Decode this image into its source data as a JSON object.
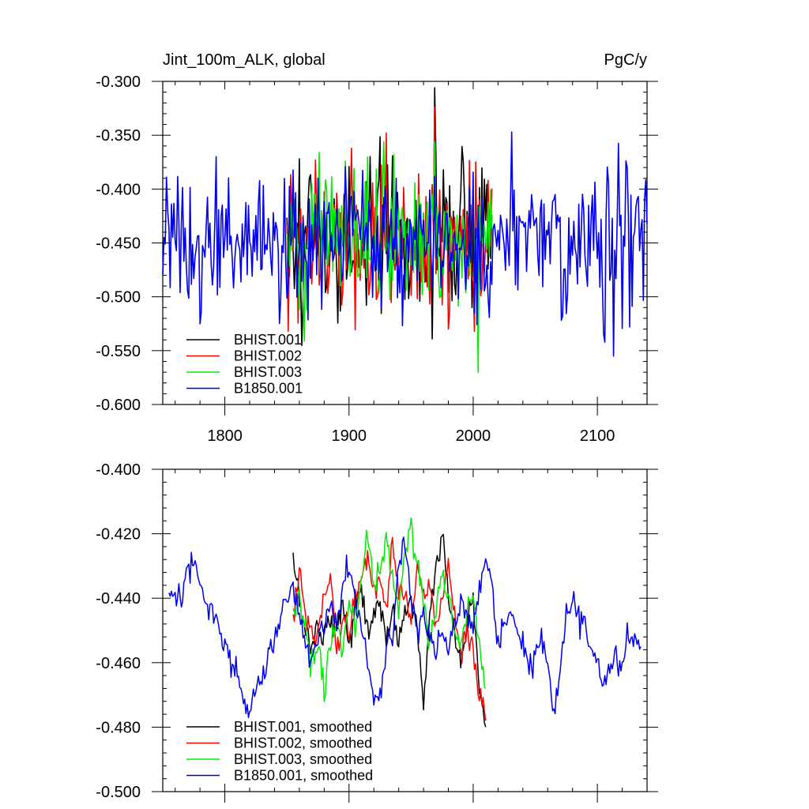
{
  "chart_data": [
    {
      "type": "line",
      "title_left": "Jint_100m_ALK, global",
      "title_right": "PgC/y",
      "xlim": [
        1750,
        2140
      ],
      "ylim": [
        -0.6,
        -0.3
      ],
      "x_ticks": [
        1800,
        1900,
        2000,
        2100
      ],
      "y_ticks": [
        -0.6,
        -0.55,
        -0.5,
        -0.45,
        -0.4,
        -0.35,
        -0.3
      ],
      "y_tick_labels": [
        "-0.600",
        "-0.550",
        "-0.500",
        "-0.450",
        "-0.400",
        "-0.350",
        "-0.300"
      ],
      "legend_position": "bottom-left",
      "series": [
        {
          "name": "BHIST.001",
          "color": "#000000",
          "x_start": 1850,
          "x_end": 2015,
          "mean": -0.445,
          "sd": 0.038,
          "min": -0.548,
          "max": -0.306
        },
        {
          "name": "BHIST.002",
          "color": "#ff0000",
          "x_start": 1850,
          "x_end": 2015,
          "mean": -0.446,
          "sd": 0.037,
          "min": -0.532,
          "max": -0.324
        },
        {
          "name": "BHIST.003",
          "color": "#00ee00",
          "x_start": 1850,
          "x_end": 2015,
          "mean": -0.444,
          "sd": 0.037,
          "min": -0.57,
          "max": -0.356
        },
        {
          "name": "B1850.001",
          "color": "#0000ee",
          "x_start": 1750,
          "x_end": 2140,
          "mean": -0.448,
          "sd": 0.033,
          "min": -0.555,
          "max": -0.347
        }
      ]
    },
    {
      "type": "line",
      "xlim": [
        1750,
        2140
      ],
      "ylim": [
        -0.5,
        -0.4
      ],
      "x_ticks": [
        1800,
        1900,
        2000,
        2100
      ],
      "y_ticks": [
        -0.5,
        -0.48,
        -0.46,
        -0.44,
        -0.42,
        -0.4
      ],
      "y_tick_labels": [
        "-0.500",
        "-0.480",
        "-0.460",
        "-0.440",
        "-0.420",
        "-0.400"
      ],
      "legend_position": "bottom-left",
      "series": [
        {
          "name": "BHIST.001, smoothed",
          "color": "#000000",
          "x": [
            1855,
            1860,
            1865,
            1870,
            1875,
            1880,
            1885,
            1890,
            1895,
            1900,
            1905,
            1910,
            1915,
            1920,
            1925,
            1930,
            1935,
            1940,
            1945,
            1950,
            1955,
            1960,
            1965,
            1970,
            1975,
            1980,
            1985,
            1990,
            1995,
            2000,
            2005,
            2010
          ],
          "y": [
            -0.428,
            -0.44,
            -0.45,
            -0.455,
            -0.448,
            -0.452,
            -0.445,
            -0.45,
            -0.44,
            -0.455,
            -0.442,
            -0.438,
            -0.45,
            -0.445,
            -0.44,
            -0.455,
            -0.445,
            -0.452,
            -0.445,
            -0.44,
            -0.45,
            -0.473,
            -0.445,
            -0.43,
            -0.422,
            -0.438,
            -0.45,
            -0.462,
            -0.448,
            -0.44,
            -0.47,
            -0.48
          ]
        },
        {
          "name": "BHIST.002, smoothed",
          "color": "#ff0000",
          "x": [
            1855,
            1860,
            1865,
            1870,
            1875,
            1880,
            1885,
            1890,
            1895,
            1900,
            1905,
            1910,
            1915,
            1920,
            1925,
            1930,
            1935,
            1940,
            1945,
            1950,
            1955,
            1960,
            1965,
            1970,
            1975,
            1980,
            1985,
            1990,
            1995,
            2000,
            2005,
            2010
          ],
          "y": [
            -0.447,
            -0.43,
            -0.445,
            -0.452,
            -0.45,
            -0.44,
            -0.432,
            -0.455,
            -0.445,
            -0.45,
            -0.44,
            -0.435,
            -0.425,
            -0.44,
            -0.432,
            -0.445,
            -0.422,
            -0.438,
            -0.44,
            -0.445,
            -0.43,
            -0.44,
            -0.435,
            -0.45,
            -0.44,
            -0.43,
            -0.445,
            -0.455,
            -0.45,
            -0.458,
            -0.47,
            -0.478
          ]
        },
        {
          "name": "BHIST.003, smoothed",
          "color": "#00ee00",
          "x": [
            1855,
            1860,
            1865,
            1870,
            1875,
            1880,
            1885,
            1890,
            1895,
            1900,
            1905,
            1910,
            1915,
            1920,
            1925,
            1930,
            1935,
            1940,
            1945,
            1950,
            1955,
            1960,
            1965,
            1970,
            1975,
            1980,
            1985,
            1990,
            1995,
            2000,
            2005,
            2010
          ],
          "y": [
            -0.445,
            -0.44,
            -0.452,
            -0.46,
            -0.455,
            -0.468,
            -0.455,
            -0.448,
            -0.455,
            -0.44,
            -0.45,
            -0.435,
            -0.418,
            -0.44,
            -0.43,
            -0.42,
            -0.435,
            -0.445,
            -0.425,
            -0.417,
            -0.43,
            -0.44,
            -0.455,
            -0.445,
            -0.43,
            -0.44,
            -0.45,
            -0.455,
            -0.445,
            -0.44,
            -0.455,
            -0.468
          ]
        },
        {
          "name": "B1850.001, smoothed",
          "color": "#0000ee",
          "x": [
            1755,
            1760,
            1765,
            1770,
            1775,
            1780,
            1785,
            1790,
            1795,
            1800,
            1805,
            1810,
            1815,
            1820,
            1825,
            1830,
            1835,
            1840,
            1845,
            1850,
            1855,
            1860,
            1865,
            1870,
            1875,
            1880,
            1885,
            1890,
            1895,
            1900,
            1905,
            1910,
            1915,
            1920,
            1925,
            1930,
            1935,
            1940,
            1945,
            1950,
            1955,
            1960,
            1965,
            1970,
            1975,
            1980,
            1985,
            1990,
            1995,
            2000,
            2005,
            2010,
            2015,
            2020,
            2025,
            2030,
            2035,
            2040,
            2045,
            2050,
            2055,
            2060,
            2065,
            2070,
            2075,
            2080,
            2085,
            2090,
            2095,
            2100,
            2105,
            2110,
            2115,
            2120,
            2125,
            2130,
            2135
          ],
          "y": [
            -0.44,
            -0.438,
            -0.44,
            -0.432,
            -0.43,
            -0.435,
            -0.44,
            -0.445,
            -0.448,
            -0.455,
            -0.46,
            -0.465,
            -0.47,
            -0.475,
            -0.468,
            -0.465,
            -0.458,
            -0.452,
            -0.445,
            -0.44,
            -0.436,
            -0.445,
            -0.455,
            -0.46,
            -0.452,
            -0.447,
            -0.44,
            -0.45,
            -0.435,
            -0.43,
            -0.44,
            -0.45,
            -0.46,
            -0.47,
            -0.47,
            -0.455,
            -0.45,
            -0.43,
            -0.422,
            -0.44,
            -0.45,
            -0.445,
            -0.452,
            -0.455,
            -0.45,
            -0.455,
            -0.448,
            -0.44,
            -0.445,
            -0.45,
            -0.438,
            -0.428,
            -0.435,
            -0.455,
            -0.448,
            -0.442,
            -0.45,
            -0.455,
            -0.462,
            -0.458,
            -0.452,
            -0.46,
            -0.475,
            -0.462,
            -0.445,
            -0.44,
            -0.445,
            -0.45,
            -0.455,
            -0.46,
            -0.47,
            -0.46,
            -0.458,
            -0.46,
            -0.452,
            -0.45,
            -0.455
          ]
        }
      ]
    }
  ]
}
